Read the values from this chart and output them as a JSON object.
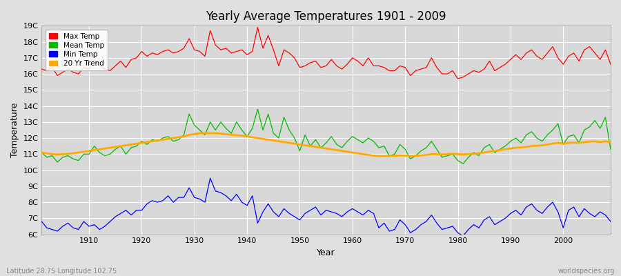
{
  "title": "Yearly Average Temperatures 1901 - 2009",
  "xlabel": "Year",
  "ylabel": "Temperature",
  "footnote_left": "Latitude 28.75 Longitude 102.75",
  "footnote_right": "worldspecies.org",
  "legend_labels": [
    "Max Temp",
    "Mean Temp",
    "Min Temp",
    "20 Yr Trend"
  ],
  "legend_colors": [
    "#ff0000",
    "#00bb00",
    "#0000ff",
    "#ffaa00"
  ],
  "bg_color": "#e0e0e0",
  "plot_bg_color": "#d8d8d8",
  "grid_color": "#ffffff",
  "ylim": [
    6,
    19
  ],
  "yticks": [
    6,
    7,
    8,
    9,
    10,
    11,
    12,
    13,
    14,
    15,
    16,
    17,
    18,
    19
  ],
  "ytick_labels": [
    "6C",
    "7C",
    "8C",
    "9C",
    "10C",
    "11C",
    "12C",
    "13C",
    "14C",
    "15C",
    "16C",
    "17C",
    "18C",
    "19C"
  ],
  "xlim": [
    1901,
    2009
  ],
  "xticks": [
    1910,
    1920,
    1930,
    1940,
    1950,
    1960,
    1970,
    1980,
    1990,
    2000
  ],
  "start_year": 1901,
  "end_year": 2009,
  "max_temp": [
    16.3,
    16.2,
    16.4,
    15.9,
    16.1,
    16.3,
    16.1,
    16.0,
    16.4,
    16.3,
    16.9,
    16.5,
    16.3,
    16.2,
    16.5,
    16.8,
    16.4,
    16.9,
    17.0,
    17.4,
    17.1,
    17.3,
    17.2,
    17.4,
    17.5,
    17.3,
    17.4,
    17.6,
    18.2,
    17.5,
    17.4,
    17.1,
    18.7,
    17.8,
    17.5,
    17.6,
    17.3,
    17.4,
    17.5,
    17.2,
    17.4,
    18.9,
    17.6,
    18.4,
    17.5,
    16.5,
    17.5,
    17.3,
    17.0,
    16.4,
    16.5,
    16.7,
    16.8,
    16.4,
    16.5,
    16.9,
    16.5,
    16.3,
    16.6,
    17.0,
    16.8,
    16.5,
    17.0,
    16.5,
    16.5,
    16.4,
    16.2,
    16.2,
    16.5,
    16.4,
    15.9,
    16.2,
    16.3,
    16.4,
    17.0,
    16.4,
    16.0,
    16.0,
    16.2,
    15.7,
    15.8,
    16.0,
    16.2,
    16.1,
    16.3,
    16.8,
    16.2,
    16.4,
    16.6,
    16.9,
    17.2,
    16.9,
    17.3,
    17.5,
    17.1,
    16.9,
    17.3,
    17.7,
    17.0,
    16.6,
    17.1,
    17.3,
    16.8,
    17.5,
    17.7,
    17.3,
    16.9,
    17.5,
    16.6
  ],
  "mean_temp": [
    11.1,
    10.8,
    10.9,
    10.5,
    10.8,
    10.9,
    10.7,
    10.6,
    11.0,
    11.0,
    11.5,
    11.1,
    10.9,
    11.0,
    11.3,
    11.5,
    11.0,
    11.4,
    11.5,
    11.8,
    11.6,
    11.9,
    11.8,
    12.0,
    12.1,
    11.8,
    11.9,
    12.2,
    13.5,
    12.8,
    12.5,
    12.2,
    13.0,
    12.5,
    13.0,
    12.6,
    12.3,
    13.0,
    12.5,
    12.1,
    12.6,
    13.8,
    12.5,
    13.5,
    12.3,
    12.0,
    13.3,
    12.5,
    12.0,
    11.2,
    12.2,
    11.5,
    11.9,
    11.4,
    11.7,
    12.1,
    11.6,
    11.4,
    11.8,
    12.1,
    11.9,
    11.7,
    12.0,
    11.8,
    11.4,
    11.5,
    10.9,
    11.0,
    11.6,
    11.3,
    10.7,
    10.9,
    11.2,
    11.4,
    11.8,
    11.3,
    10.8,
    10.9,
    11.0,
    10.6,
    10.4,
    10.8,
    11.1,
    10.9,
    11.4,
    11.6,
    11.1,
    11.3,
    11.5,
    11.8,
    12.0,
    11.7,
    12.2,
    12.4,
    12.0,
    11.8,
    12.2,
    12.5,
    12.9,
    11.6,
    12.1,
    12.2,
    11.7,
    12.5,
    12.7,
    13.1,
    12.6,
    13.3,
    11.3
  ],
  "min_temp": [
    6.8,
    6.4,
    6.3,
    6.2,
    6.5,
    6.7,
    6.4,
    6.3,
    6.8,
    6.5,
    6.6,
    6.3,
    6.5,
    6.8,
    7.1,
    7.3,
    7.5,
    7.2,
    7.5,
    7.5,
    7.9,
    8.1,
    8.0,
    8.1,
    8.4,
    8.0,
    8.3,
    8.3,
    8.9,
    8.3,
    8.2,
    8.0,
    9.5,
    8.7,
    8.6,
    8.4,
    8.1,
    8.5,
    8.0,
    7.8,
    8.4,
    6.7,
    7.4,
    7.9,
    7.4,
    7.1,
    7.6,
    7.3,
    7.1,
    6.9,
    7.3,
    7.5,
    7.7,
    7.2,
    7.5,
    7.4,
    7.3,
    7.1,
    7.4,
    7.6,
    7.4,
    7.2,
    7.5,
    7.3,
    6.4,
    6.7,
    6.2,
    6.3,
    6.9,
    6.6,
    6.1,
    6.3,
    6.6,
    6.8,
    7.2,
    6.7,
    6.3,
    6.4,
    6.5,
    6.1,
    5.9,
    6.3,
    6.6,
    6.4,
    6.9,
    7.1,
    6.6,
    6.8,
    7.0,
    7.3,
    7.5,
    7.2,
    7.7,
    7.9,
    7.5,
    7.3,
    7.7,
    8.0,
    7.4,
    6.4,
    7.5,
    7.7,
    7.1,
    7.6,
    7.3,
    7.1,
    7.4,
    7.2,
    6.8
  ],
  "trend_temp": [
    11.1,
    11.05,
    11.0,
    10.98,
    11.0,
    11.02,
    11.05,
    11.1,
    11.15,
    11.2,
    11.25,
    11.3,
    11.35,
    11.4,
    11.45,
    11.5,
    11.55,
    11.6,
    11.65,
    11.7,
    11.75,
    11.8,
    11.85,
    11.9,
    11.95,
    12.0,
    12.05,
    12.1,
    12.2,
    12.25,
    12.3,
    12.3,
    12.3,
    12.3,
    12.28,
    12.25,
    12.2,
    12.18,
    12.15,
    12.1,
    12.05,
    12.0,
    11.95,
    11.9,
    11.85,
    11.8,
    11.75,
    11.7,
    11.65,
    11.6,
    11.55,
    11.5,
    11.45,
    11.4,
    11.35,
    11.3,
    11.25,
    11.2,
    11.15,
    11.1,
    11.05,
    11.0,
    10.95,
    10.9,
    10.88,
    10.88,
    10.88,
    10.9,
    10.92,
    10.9,
    10.88,
    10.9,
    10.92,
    10.95,
    11.0,
    11.0,
    10.98,
    11.0,
    11.02,
    11.0,
    10.98,
    11.0,
    11.02,
    11.05,
    11.1,
    11.15,
    11.2,
    11.25,
    11.3,
    11.35,
    11.4,
    11.42,
    11.45,
    11.5,
    11.52,
    11.55,
    11.6,
    11.65,
    11.7,
    11.65,
    11.7,
    11.72,
    11.7,
    11.75,
    11.78,
    11.8,
    11.75,
    11.8,
    11.75
  ]
}
